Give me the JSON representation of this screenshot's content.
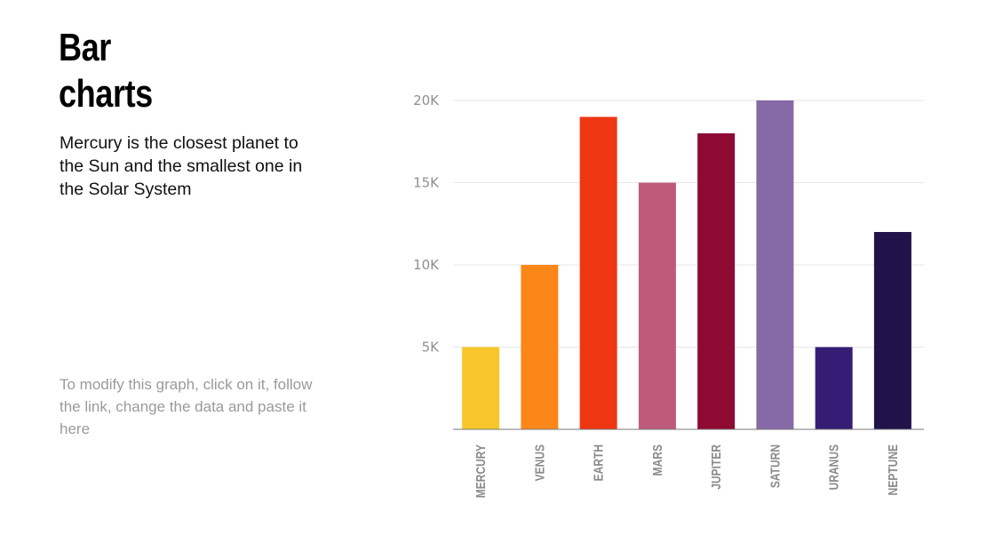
{
  "slide": {
    "title_line1": "Bar",
    "title_line2": "charts",
    "subtitle": "Mercury is the closest planet to the Sun and the smallest one in the Solar System",
    "note": "To modify this graph, click on it, follow the link, change the data and paste it here"
  },
  "chart_data": {
    "type": "bar",
    "categories": [
      "MERCURY",
      "VENUS",
      "EARTH",
      "MARS",
      "JUPITER",
      "SATURN",
      "URANUS",
      "NEPTUNE"
    ],
    "values": [
      5000,
      10000,
      19000,
      15000,
      18000,
      20000,
      5000,
      12000
    ],
    "colors": [
      "#f7c62b",
      "#fb8718",
      "#ee3613",
      "#c05a7b",
      "#8e0a33",
      "#866aa7",
      "#361c74",
      "#21124a"
    ],
    "ylim": [
      0,
      20000
    ],
    "yticks": [
      5000,
      10000,
      15000,
      20000
    ],
    "ytick_labels": [
      "5K",
      "10K",
      "15K",
      "20K"
    ],
    "grid": true,
    "xlabel": "",
    "ylabel": ""
  }
}
